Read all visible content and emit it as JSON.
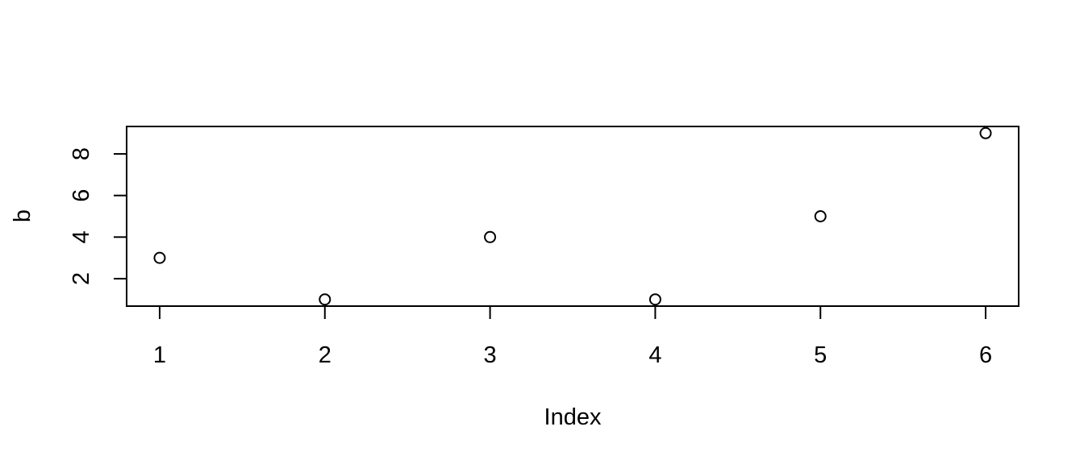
{
  "chart_data": {
    "type": "scatter",
    "title": "",
    "xlabel": "Index",
    "ylabel": "b",
    "x": [
      1,
      2,
      3,
      4,
      5,
      6
    ],
    "y": [
      3,
      1,
      4,
      1,
      5,
      9
    ],
    "xlim": [
      0.8,
      6.2
    ],
    "ylim": [
      0.68,
      9.32
    ],
    "x_ticks": [
      1,
      2,
      3,
      4,
      5,
      6
    ],
    "y_ticks": [
      2,
      4,
      6,
      8
    ],
    "grid": false,
    "legend": "none",
    "colors": {
      "points": "#000000",
      "axes": "#000000",
      "background": "#ffffff"
    }
  }
}
